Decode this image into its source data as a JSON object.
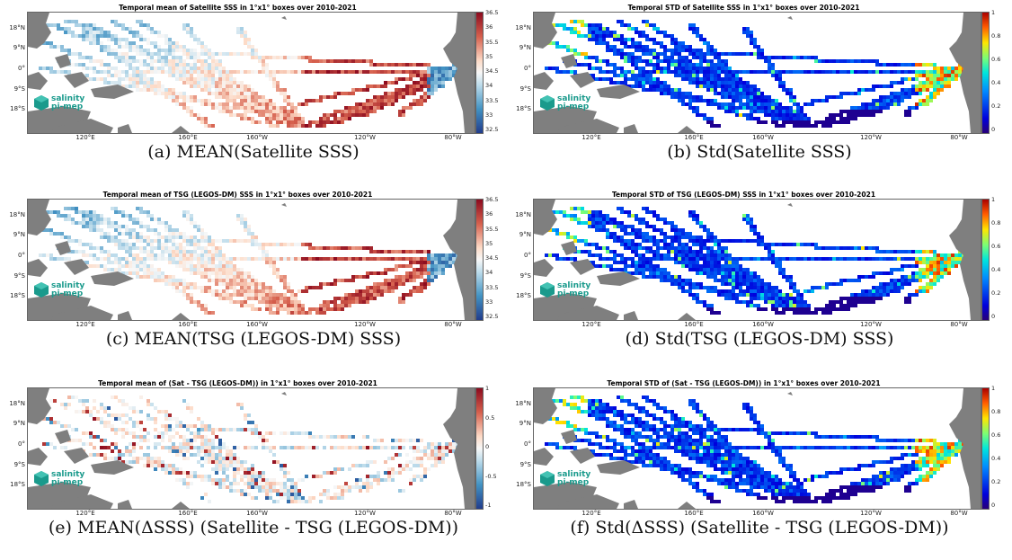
{
  "panels": [
    {
      "title": "Temporal mean of Satellite SSS in 1°x1° boxes over 2010-2021",
      "caption": "(a) MEAN(Satellite SSS)",
      "colorbar": "rdbu",
      "ticks": [
        "36.5",
        "36",
        "35.5",
        "35",
        "34.5",
        "34",
        "33.5",
        "33",
        "32.5"
      ],
      "field": "sss"
    },
    {
      "title": "Temporal STD of Satellite SSS in 1°x1° boxes over 2010-2021",
      "caption": "(b) Std(Satellite SSS)",
      "colorbar": "jet",
      "ticks": [
        "1",
        "0.8",
        "0.6",
        "0.4",
        "0.2",
        "0"
      ],
      "field": "std"
    },
    {
      "title": "Temporal mean of TSG (LEGOS-DM) SSS in 1°x1° boxes over 2010-2021",
      "caption": "(c) MEAN(TSG (LEGOS-DM) SSS)",
      "colorbar": "rdbu",
      "ticks": [
        "36.5",
        "36",
        "35.5",
        "35",
        "34.5",
        "34",
        "33.5",
        "33",
        "32.5"
      ],
      "field": "sss"
    },
    {
      "title": "Temporal STD of TSG (LEGOS-DM) SSS in 1°x1° boxes over 2010-2021",
      "caption": "(d) Std(TSG (LEGOS-DM) SSS)",
      "colorbar": "jet",
      "ticks": [
        "1",
        "0.8",
        "0.6",
        "0.4",
        "0.2",
        "0"
      ],
      "field": "std"
    },
    {
      "title": "Temporal mean of (Sat - TSG (LEGOS-DM)) in 1°x1° boxes over 2010-2021",
      "caption": "(e) MEAN(ΔSSS) (Satellite - TSG (LEGOS-DM))",
      "colorbar": "rdbu",
      "ticks": [
        "1",
        "0.5",
        "0",
        "-0.5",
        "-1"
      ],
      "field": "diff"
    },
    {
      "title": "Temporal STD of (Sat - TSG (LEGOS-DM)) in 1°x1° boxes over 2010-2021",
      "caption": "(f) Std(ΔSSS) (Satellite - TSG (LEGOS-DM))",
      "colorbar": "jet",
      "ticks": [
        "1",
        "0.8",
        "0.6",
        "0.4",
        "0.2",
        "0"
      ],
      "field": "std"
    }
  ],
  "lat_labels": [
    "18°N",
    "9°N",
    "0°",
    "9°S",
    "18°S"
  ],
  "lon_labels": [
    "120°E",
    "160°E",
    "160°W",
    "120°W",
    "80°W"
  ],
  "logo": {
    "line1": "salinity",
    "line2": "pi-mep"
  },
  "colors": {
    "land": "#7f7f7f",
    "red": "#b2182b",
    "blue": "#2166ac",
    "logo": "#1a9a8c"
  }
}
